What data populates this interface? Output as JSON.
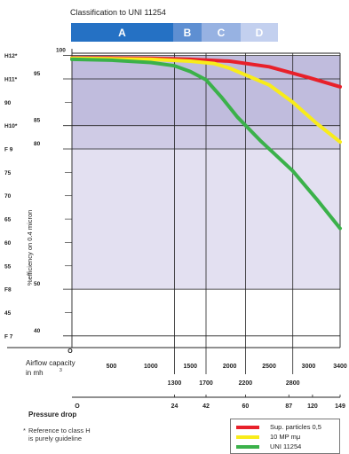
{
  "colors": {
    "class_a": "#2571c4",
    "class_b": "#5e8fd2",
    "class_c": "#97b2e2",
    "class_d": "#c3d0ef",
    "band_h": "#c0bcdd",
    "band_f9": "#cfcbe5",
    "band_f8": "#e3e0f1",
    "red": "#e8202a",
    "yellow": "#f8ec1a",
    "green": "#3bb14a"
  },
  "chart_data": {
    "type": "line",
    "classification_title": "Classification  to  UNI  11254",
    "classes": [
      "A",
      "B",
      "C",
      "D"
    ],
    "ylabel": "%efficiency on 0.4 micron",
    "xlabel_line1": "Airflow capacity",
    "xlabel_line2": "in mh",
    "xlabel_sup": "3",
    "x_range": [
      0,
      3400
    ],
    "y_range": [
      37.5,
      100.5
    ],
    "y_axis_ticks": [
      {
        "value": 100,
        "label": "100"
      },
      {
        "value": 95,
        "label": "95"
      },
      {
        "value": 85,
        "label": "85"
      },
      {
        "value": 80,
        "label": "80"
      },
      {
        "value": 50,
        "label": "50"
      },
      {
        "value": 40,
        "label": "40"
      }
    ],
    "y_outer_ticks": [
      {
        "value": 100,
        "label": "H12*"
      },
      {
        "value": 95,
        "label": "H11*"
      },
      {
        "value": 90,
        "label": "90"
      },
      {
        "value": 85,
        "label": "H10*"
      },
      {
        "value": 80,
        "label": "F 9"
      },
      {
        "value": 75,
        "label": "75"
      },
      {
        "value": 70,
        "label": "70"
      },
      {
        "value": 65,
        "label": "65"
      },
      {
        "value": 60,
        "label": "60"
      },
      {
        "value": 55,
        "label": "55"
      },
      {
        "value": 50,
        "label": "F8"
      },
      {
        "value": 45,
        "label": "45"
      },
      {
        "value": 40,
        "label": "F 7"
      }
    ],
    "bands": [
      {
        "name": "H",
        "from": 85,
        "to": 100
      },
      {
        "name": "F9",
        "from": 80,
        "to": 85
      },
      {
        "name": "F8",
        "from": 50,
        "to": 80
      }
    ],
    "x_origin_label": "O",
    "x_ticks": [
      500,
      1000,
      1500,
      2000,
      2500,
      3000,
      3400
    ],
    "x_ticks2": [
      {
        "x": 1300,
        "label": "1300"
      },
      {
        "x": 1700,
        "label": "1700"
      },
      {
        "x": 2200,
        "label": "2200"
      },
      {
        "x": 2800,
        "label": "2800"
      }
    ],
    "pressure_origin_label": "O",
    "pressure_ticks": [
      {
        "x": 1300,
        "label": "24"
      },
      {
        "x": 1700,
        "label": "42"
      },
      {
        "x": 2200,
        "label": "60"
      },
      {
        "x": 2750,
        "label": "87"
      },
      {
        "x": 3050,
        "label": "120"
      },
      {
        "x": 3400,
        "label": "149"
      }
    ],
    "pressure_label": "Pressure drop",
    "vlines": [
      1300,
      1700,
      2200,
      2800
    ],
    "series": [
      {
        "color": "red",
        "x": [
          0,
          500,
          1000,
          1500,
          2000,
          2500,
          3000,
          3400
        ],
        "y": [
          99.5,
          99.5,
          99.4,
          99.2,
          98.8,
          97.6,
          95.3,
          93.3
        ]
      },
      {
        "color": "yellow",
        "x": [
          0,
          500,
          1000,
          1500,
          1800,
          2000,
          2500,
          2800,
          3100,
          3400
        ],
        "y": [
          99.4,
          99.3,
          99.2,
          98.8,
          98.3,
          97.3,
          93.7,
          90.0,
          85.5,
          81.5
        ]
      },
      {
        "color": "green",
        "x": [
          0,
          500,
          1000,
          1300,
          1500,
          1700,
          1900,
          2100,
          2400,
          2800,
          3100,
          3400
        ],
        "y": [
          99.2,
          99.0,
          98.5,
          97.8,
          96.6,
          94.8,
          91.0,
          86.8,
          81.6,
          75.3,
          69.3,
          63.0
        ]
      }
    ]
  },
  "footnote": {
    "mark": "*",
    "line1": "Reference to class H",
    "line2": "is purely guideline"
  },
  "legend": {
    "items": [
      {
        "color": "red",
        "label": "Sup.  particles 0,5"
      },
      {
        "color": "yellow",
        "label": "10 MP      mμ"
      },
      {
        "color": "green",
        "label": "UNI 11254"
      }
    ]
  }
}
